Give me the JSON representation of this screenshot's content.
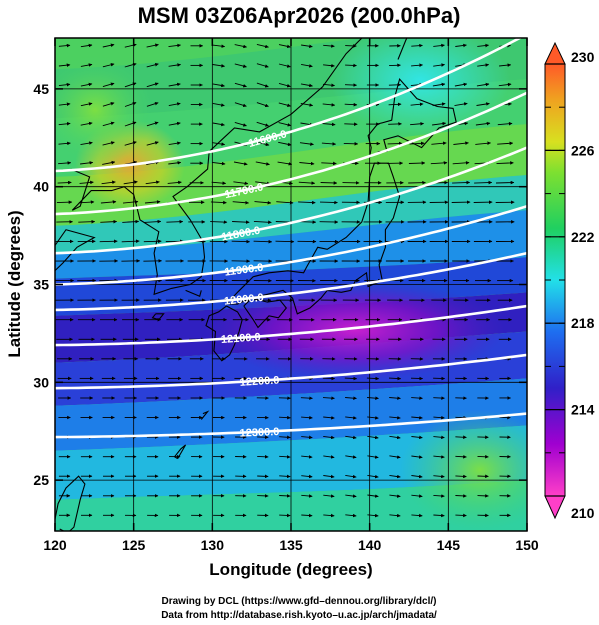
{
  "title": "MSM 03Z06Apr2026 (200.0hPa)",
  "x_axis": {
    "label": "Longitude (degrees)",
    "range": [
      120,
      150
    ],
    "ticks": [
      "120",
      "125",
      "130",
      "135",
      "140",
      "145",
      "150"
    ]
  },
  "y_axis": {
    "label": "Latitude  (degrees)",
    "range": [
      22.4,
      47.6
    ],
    "ticks": [
      "25",
      "30",
      "35",
      "40",
      "45"
    ]
  },
  "colorbar": {
    "range": [
      210,
      230
    ],
    "ticks": [
      "210",
      "214",
      "218",
      "222",
      "226",
      "230"
    ],
    "colors": {
      "low": "#ff3fc8",
      "high": "#ff5a28"
    }
  },
  "contours": [
    {
      "label": "11600.0",
      "lat_west": 40.8,
      "lat_east": 47.8
    },
    {
      "label": "11700.0",
      "lat_west": 38.6,
      "lat_east": 44.8
    },
    {
      "label": "11800.0",
      "lat_west": 36.6,
      "lat_east": 42.0
    },
    {
      "label": "11900.0",
      "lat_west": 35.0,
      "lat_east": 39.0
    },
    {
      "label": "12000.0",
      "lat_west": 33.7,
      "lat_east": 36.6
    },
    {
      "label": "12100.0",
      "lat_west": 31.9,
      "lat_east": 33.9
    },
    {
      "label": "12200.0",
      "lat_west": 29.7,
      "lat_east": 31.4
    },
    {
      "label": "12300.0",
      "lat_west": 27.2,
      "lat_east": 28.4
    }
  ],
  "credits": {
    "line1": "Drawing by DCL (https://www.gfd–dennou.org/library/dcl/)",
    "line2": "Data from http://database.rish.kyoto–u.ac.jp/arch/jmadata/"
  }
}
